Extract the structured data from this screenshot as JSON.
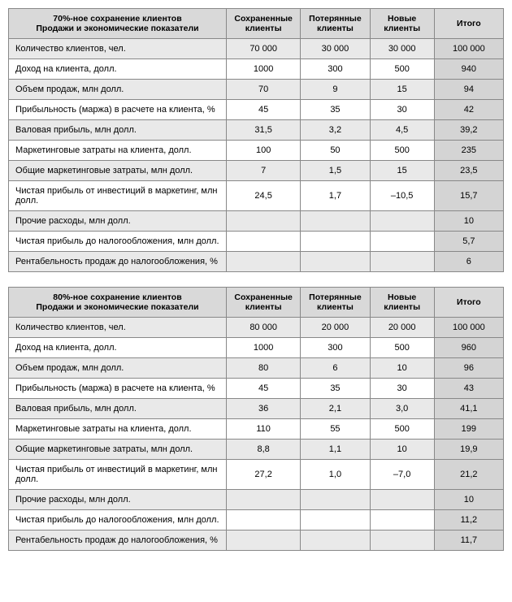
{
  "tables": [
    {
      "headerLine1": "70%-ное сохранение клиентов",
      "headerLine2": "Продажи и экономические показатели",
      "cols": [
        "Сохраненные клиенты",
        "Потерянные клиенты",
        "Новые клиенты",
        "Итого"
      ],
      "rows": [
        {
          "label": "Количество клиентов, чел.",
          "v": [
            "70 000",
            "30 000",
            "30 000",
            "100 000"
          ]
        },
        {
          "label": "Доход на клиента, долл.",
          "v": [
            "1000",
            "300",
            "500",
            "940"
          ]
        },
        {
          "label": "Объем продаж, млн долл.",
          "v": [
            "70",
            "9",
            "15",
            "94"
          ]
        },
        {
          "label": "Прибыльность (маржа) в расчете на клиента, %",
          "v": [
            "45",
            "35",
            "30",
            "42"
          ]
        },
        {
          "label": "Валовая прибыль, млн долл.",
          "v": [
            "31,5",
            "3,2",
            "4,5",
            "39,2"
          ]
        },
        {
          "label": "Маркетинговые затраты на клиента, долл.",
          "v": [
            "100",
            "50",
            "500",
            "235"
          ]
        },
        {
          "label": "Общие маркетинговые затраты, млн долл.",
          "v": [
            "7",
            "1,5",
            "15",
            "23,5"
          ]
        },
        {
          "label": "Чистая прибыль от инвестиций в маркетинг, млн долл.",
          "v": [
            "24,5",
            "1,7",
            "–10,5",
            "15,7"
          ]
        },
        {
          "label": "Прочие расходы, млн долл.",
          "v": [
            "",
            "",
            "",
            "10"
          ]
        },
        {
          "label": "Чистая прибыль до налогообложения, млн долл.",
          "v": [
            "",
            "",
            "",
            "5,7"
          ]
        },
        {
          "label": "Рентабельность продаж до налогообложения, %",
          "v": [
            "",
            "",
            "",
            "6"
          ]
        }
      ]
    },
    {
      "headerLine1": "80%-ное сохранение клиентов",
      "headerLine2": "Продажи и экономические показатели",
      "cols": [
        "Сохраненные клиенты",
        "Потерянные клиенты",
        "Новые клиенты",
        "Итого"
      ],
      "rows": [
        {
          "label": "Количество клиентов, чел.",
          "v": [
            "80 000",
            "20 000",
            "20 000",
            "100 000"
          ]
        },
        {
          "label": "Доход на клиента, долл.",
          "v": [
            "1000",
            "300",
            "500",
            "960"
          ]
        },
        {
          "label": "Объем продаж, млн долл.",
          "v": [
            "80",
            "6",
            "10",
            "96"
          ]
        },
        {
          "label": "Прибыльность (маржа) в расчете на клиента, %",
          "v": [
            "45",
            "35",
            "30",
            "43"
          ]
        },
        {
          "label": "Валовая прибыль, млн долл.",
          "v": [
            "36",
            "2,1",
            "3,0",
            "41,1"
          ]
        },
        {
          "label": "Маркетинговые затраты на клиента, долл.",
          "v": [
            "110",
            "55",
            "500",
            "199"
          ]
        },
        {
          "label": "Общие маркетинговые затраты, млн долл.",
          "v": [
            "8,8",
            "1,1",
            "10",
            "19,9"
          ]
        },
        {
          "label": "Чистая прибыль от инвестиций в маркетинг, млн долл.",
          "v": [
            "27,2",
            "1,0",
            "–7,0",
            "21,2"
          ]
        },
        {
          "label": "Прочие расходы, млн долл.",
          "v": [
            "",
            "",
            "",
            "10"
          ]
        },
        {
          "label": "Чистая прибыль до налогообложения, млн долл.",
          "v": [
            "",
            "",
            "",
            "11,2"
          ]
        },
        {
          "label": "Рентабельность продаж до налогообложения, %",
          "v": [
            "",
            "",
            "",
            "11,7"
          ]
        }
      ]
    }
  ],
  "colors": {
    "header_bg": "#d9d9d9",
    "stripe_bg": "#e9e9e9",
    "total_bg": "#d4d4d4",
    "border": "#888888",
    "text": "#000000"
  }
}
